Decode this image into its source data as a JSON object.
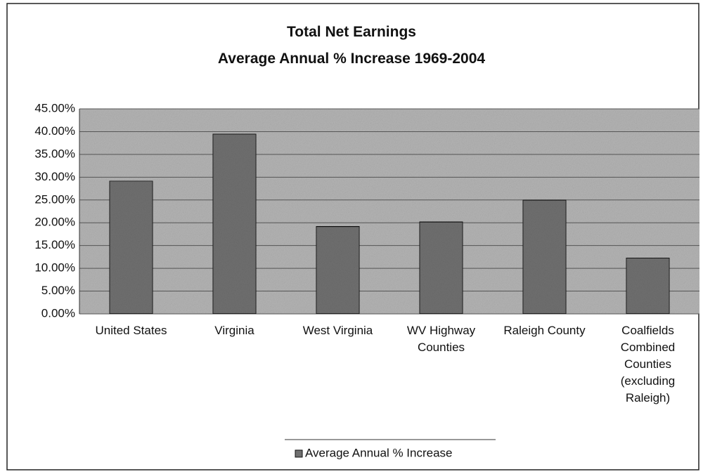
{
  "chart_data": {
    "type": "bar",
    "title": "Total Net Earnings",
    "subtitle": "Average Annual % Increase 1969-2004",
    "categories": [
      "United States",
      "Virginia",
      "West Virginia",
      "WV Highway Counties",
      "Raleigh County",
      "Coalfields Combined Counties (excluding Raleigh)"
    ],
    "series": [
      {
        "name": "Average Annual % Increase",
        "color": "#707070",
        "values": [
          29.2,
          39.5,
          19.2,
          20.2,
          25.0,
          12.3
        ]
      }
    ],
    "ylim": [
      0,
      45
    ],
    "yticks": [
      {
        "value": 0,
        "label": "0.00%"
      },
      {
        "value": 5,
        "label": "5.00%"
      },
      {
        "value": 10,
        "label": "10.00%"
      },
      {
        "value": 15,
        "label": "15.00%"
      },
      {
        "value": 20,
        "label": "20.00%"
      },
      {
        "value": 25,
        "label": "25.00%"
      },
      {
        "value": 30,
        "label": "30.00%"
      },
      {
        "value": 35,
        "label": "35.00%"
      },
      {
        "value": 40,
        "label": "40.00%"
      },
      {
        "value": 45,
        "label": "45.00%"
      }
    ],
    "grid": true,
    "legend": "bottom"
  }
}
